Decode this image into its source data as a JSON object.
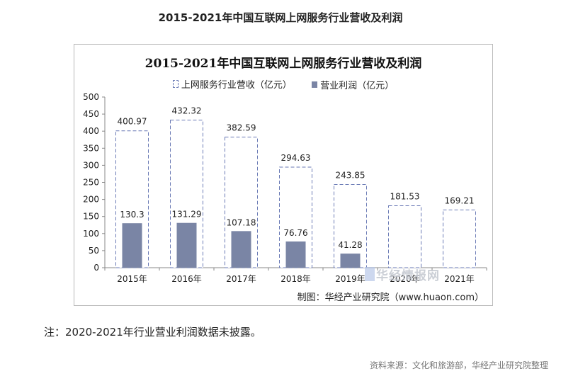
{
  "page_title": "2015-2021年中国互联网上网服务行业营收及利润",
  "credit": "制图：华经产业研究院（www.huaon.com）",
  "watermark": "华经情报网",
  "note": "注：2020-2021年行业营业利润数据未披露。",
  "source": "资料来源：文化和旅游部，华经产业研究院整理",
  "colors": {
    "revenue_border": "#6a7ab5",
    "profit_fill": "#7a85a5",
    "axis": "#888888"
  },
  "chart_data": {
    "type": "bar",
    "title": "2015-2021年中国互联网上网服务行业营收及利润",
    "categories": [
      "2015年",
      "2016年",
      "2017年",
      "2018年",
      "2019年",
      "2020年",
      "2021年"
    ],
    "series": [
      {
        "name": "上网服务行业营收（亿元）",
        "values": [
          400.97,
          432.32,
          382.59,
          294.63,
          243.85,
          181.53,
          169.21
        ],
        "labels": [
          "400.97",
          "432.32",
          "382.59",
          "294.63",
          "243.85",
          "181.53",
          "169.21"
        ],
        "style": "dashed-outline"
      },
      {
        "name": "营业利润（亿元）",
        "values": [
          130.3,
          131.29,
          107.18,
          76.76,
          41.28,
          null,
          null
        ],
        "labels": [
          "130.3",
          "131.29",
          "107.18",
          "76.76",
          "41.28",
          "",
          ""
        ],
        "style": "solid"
      }
    ],
    "yticks": [
      "0",
      "50",
      "100",
      "150",
      "200",
      "250",
      "300",
      "350",
      "400",
      "450",
      "500"
    ],
    "ylim": [
      0,
      500
    ],
    "legend_position": "top",
    "grid": false
  }
}
